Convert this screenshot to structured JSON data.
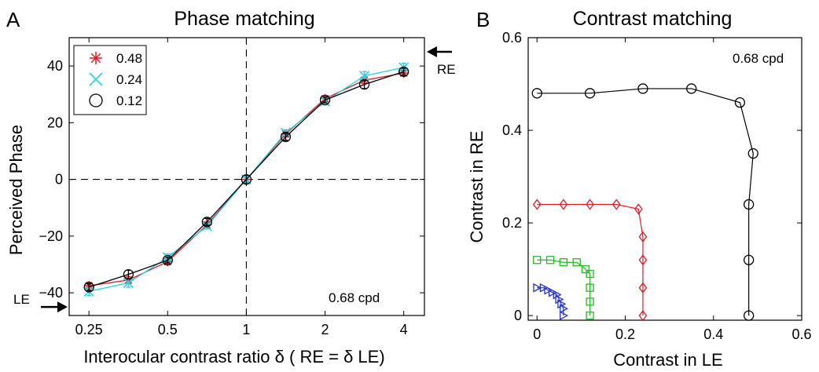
{
  "panels": {
    "A": {
      "letter": "A",
      "title": "Phase matching",
      "xlabel": "Interocular contrast ratio δ ( RE = δ LE)",
      "ylabel": "Perceived Phase",
      "annotation": "0.68 cpd",
      "re_label": "RE",
      "le_label": "LE"
    },
    "B": {
      "letter": "B",
      "title": "Contrast matching",
      "xlabel": "Contrast in LE",
      "ylabel": "Contrast in RE",
      "annotation": "0.68 cpd"
    }
  },
  "chart_data": [
    {
      "type": "line",
      "panel": "A",
      "title": "Phase matching",
      "xlabel": "Interocular contrast ratio δ ( RE = δ LE)",
      "ylabel": "Perceived Phase",
      "x_scale": "log",
      "x_ticks": [
        0.25,
        0.5,
        1,
        2,
        4
      ],
      "x_tick_labels": [
        "0.25",
        "0.5",
        "1",
        "2",
        "4"
      ],
      "y_ticks": [
        -40,
        -20,
        0,
        20,
        40
      ],
      "y_tick_labels": [
        "−40",
        "−20",
        "0",
        "20",
        "40"
      ],
      "xlim": [
        0.21,
        4.8
      ],
      "ylim": [
        -48,
        50
      ],
      "legend_position": "top-left",
      "reference_lines": {
        "x": 1,
        "y": 0,
        "style": "dashed"
      },
      "x": [
        0.25,
        0.354,
        0.5,
        0.707,
        1,
        1.414,
        2,
        2.828,
        4
      ],
      "series": [
        {
          "name": "0.48",
          "marker": "asterisk",
          "color": "#e41a1c",
          "values": [
            -37.5,
            -35.5,
            -29,
            -16,
            0,
            16,
            28.5,
            35,
            37.5
          ],
          "errors": [
            1.2,
            1.2,
            1.0,
            1.0,
            1.0,
            1.0,
            1.0,
            1.2,
            1.0
          ]
        },
        {
          "name": "0.24",
          "marker": "x",
          "color": "#22d3e6",
          "values": [
            -39.5,
            -36.5,
            -27.5,
            -16.5,
            0,
            16.5,
            27.5,
            36.5,
            39.5
          ],
          "errors": [
            1.5,
            1.5,
            1.2,
            1.0,
            1.0,
            1.0,
            1.2,
            1.5,
            1.5
          ]
        },
        {
          "name": "0.12",
          "marker": "circle",
          "color": "#000000",
          "values": [
            -38,
            -33.5,
            -28.5,
            -15,
            0,
            15,
            28,
            33.5,
            38
          ],
          "errors": [
            1.2,
            1.5,
            1.0,
            1.2,
            1.5,
            1.2,
            1.0,
            1.5,
            1.2
          ]
        }
      ],
      "arrows": [
        {
          "label": "RE",
          "y": 45,
          "side": "right"
        },
        {
          "label": "LE",
          "y": -45,
          "side": "left"
        }
      ]
    },
    {
      "type": "line",
      "panel": "B",
      "title": "Contrast matching",
      "xlabel": "Contrast in LE",
      "ylabel": "Contrast in RE",
      "xlim": [
        -0.02,
        0.6
      ],
      "ylim": [
        -0.01,
        0.6
      ],
      "x_ticks": [
        0,
        0.2,
        0.4,
        0.6
      ],
      "x_tick_labels": [
        "0",
        "0.2",
        "0.4",
        "0.6"
      ],
      "y_ticks": [
        0,
        0.2,
        0.4,
        0.6
      ],
      "y_tick_labels": [
        "0",
        "0.2",
        "0.4",
        "0.6"
      ],
      "series": [
        {
          "color": "#000000",
          "marker": "circle",
          "points": [
            [
              0,
              0.48
            ],
            [
              0.12,
              0.48
            ],
            [
              0.24,
              0.49
            ],
            [
              0.35,
              0.49
            ],
            [
              0.46,
              0.46
            ],
            [
              0.49,
              0.35
            ],
            [
              0.48,
              0.24
            ],
            [
              0.48,
              0.12
            ],
            [
              0.48,
              0
            ]
          ]
        },
        {
          "color": "#e41a1c",
          "marker": "diamond",
          "points": [
            [
              0,
              0.24
            ],
            [
              0.06,
              0.24
            ],
            [
              0.12,
              0.24
            ],
            [
              0.18,
              0.24
            ],
            [
              0.23,
              0.23
            ],
            [
              0.24,
              0.17
            ],
            [
              0.24,
              0.12
            ],
            [
              0.24,
              0.06
            ],
            [
              0.24,
              0
            ]
          ]
        },
        {
          "color": "#22bb22",
          "marker": "square",
          "points": [
            [
              0,
              0.12
            ],
            [
              0.03,
              0.12
            ],
            [
              0.06,
              0.115
            ],
            [
              0.09,
              0.115
            ],
            [
              0.11,
              0.1
            ],
            [
              0.12,
              0.09
            ],
            [
              0.12,
              0.06
            ],
            [
              0.12,
              0.03
            ],
            [
              0.12,
              0
            ]
          ]
        },
        {
          "color": "#2233cc",
          "marker": "triangle-right",
          "points": [
            [
              0,
              0.06
            ],
            [
              0.015,
              0.06
            ],
            [
              0.025,
              0.055
            ],
            [
              0.035,
              0.05
            ],
            [
              0.045,
              0.045
            ],
            [
              0.05,
              0.035
            ],
            [
              0.055,
              0.025
            ],
            [
              0.06,
              0.015
            ],
            [
              0.06,
              0
            ]
          ]
        }
      ]
    }
  ]
}
